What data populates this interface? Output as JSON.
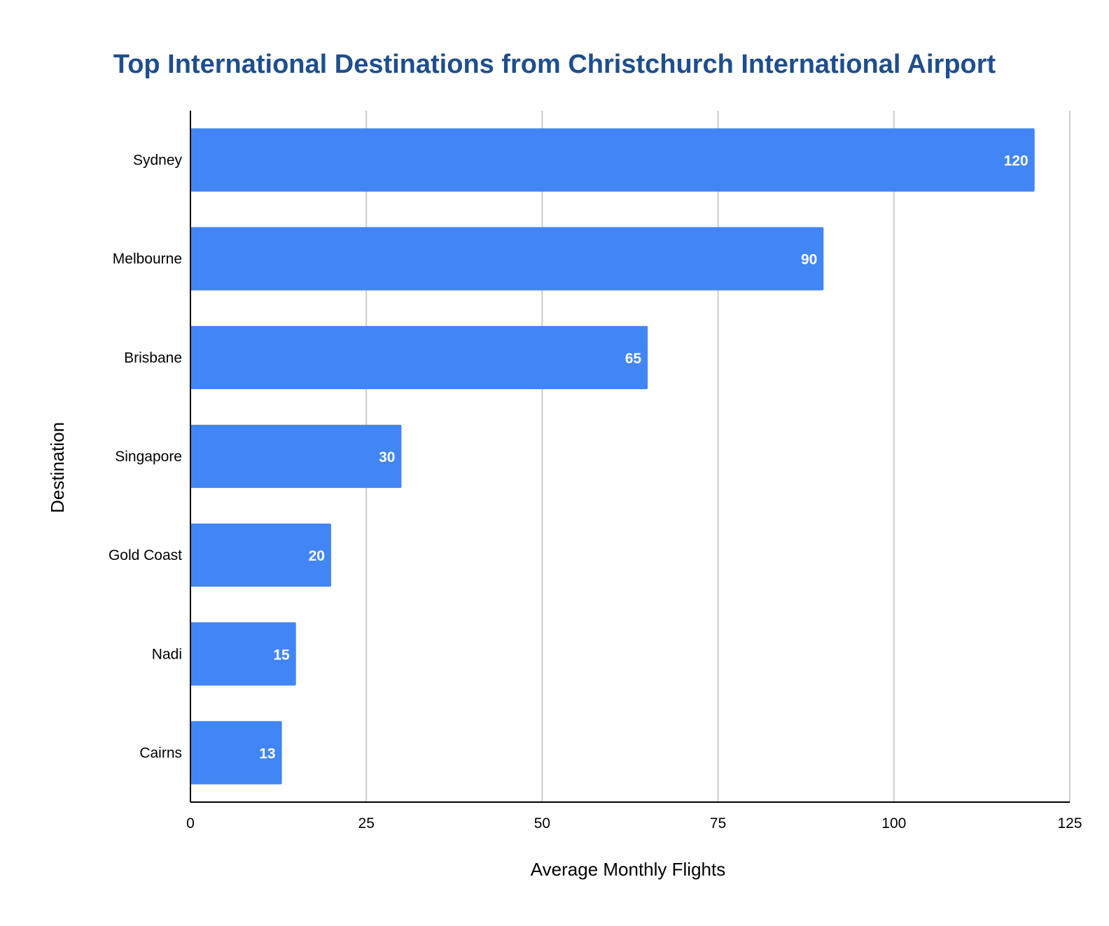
{
  "chart_data": {
    "type": "bar",
    "orientation": "horizontal",
    "title": "Top International Destinations from Christchurch International Airport",
    "xlabel": "Average Monthly Flights",
    "ylabel": "Destination",
    "categories": [
      "Sydney",
      "Melbourne",
      "Brisbane",
      "Singapore",
      "Gold Coast",
      "Nadi",
      "Cairns"
    ],
    "values": [
      120,
      90,
      65,
      30,
      20,
      15,
      13
    ],
    "data_labels": [
      "120",
      "90",
      "65",
      "30",
      "20",
      "15",
      "13"
    ],
    "xlim": [
      0,
      125
    ],
    "x_ticks": [
      0,
      25,
      50,
      75,
      100,
      125
    ],
    "x_tick_labels": [
      "0",
      "25",
      "50",
      "75",
      "100",
      "125"
    ],
    "grid": true,
    "legend": "none",
    "colors": {
      "bar": "#4285f4",
      "title": "#1f4e8c",
      "gridline": "#cccccc",
      "axis": "#000000",
      "data_label": "#ffffff"
    }
  }
}
